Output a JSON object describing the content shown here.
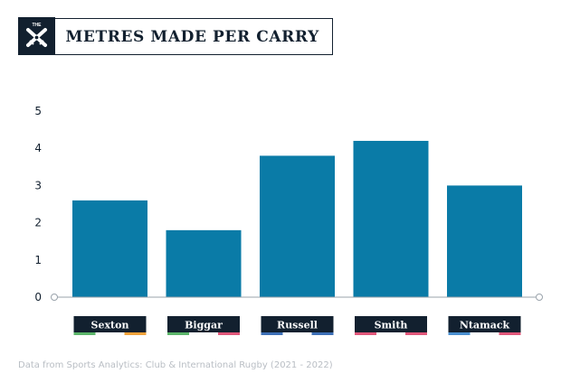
{
  "header": {
    "logo_text": "THE",
    "title": "METRES MADE PER CARRY"
  },
  "colors": {
    "bar": "#0a7ba7",
    "navy": "#12202f",
    "axis": "#9aa3ab",
    "source_text": "#b9bec4"
  },
  "chart_data": {
    "type": "bar",
    "title": "METRES MADE PER CARRY",
    "categories": [
      "Sexton",
      "Biggar",
      "Russell",
      "Smith",
      "Ntamack"
    ],
    "values": [
      2.6,
      1.8,
      3.8,
      4.2,
      3.0
    ],
    "yticks": [
      0,
      1,
      2,
      3,
      4,
      5
    ],
    "ylim": [
      0,
      5
    ],
    "xlabel": "",
    "ylabel": "",
    "grid": false,
    "legend": "none",
    "label_accents": [
      [
        "#5bb56a",
        "#f2a23a"
      ],
      [
        "#5bb56a",
        "#e0577a"
      ],
      [
        "#3d6fb6",
        "#3d6fb6"
      ],
      [
        "#e0577a",
        "#e0577a"
      ],
      [
        "#4a8fd0",
        "#e0577a"
      ]
    ]
  },
  "footer": {
    "source": "Data from Sports Analytics: Club & International Rugby (2021 - 2022)"
  }
}
